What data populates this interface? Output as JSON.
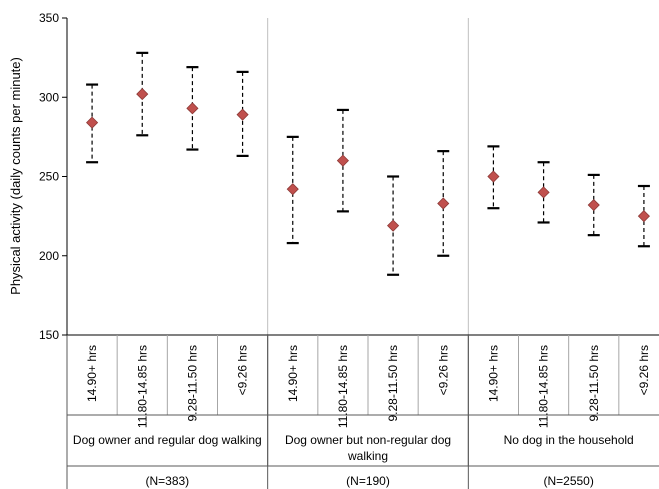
{
  "chart_data": {
    "type": "scatter",
    "subtype": "point estimates with error bars, grouped categories",
    "ylabel": "Physical activity (daily counts per minute)",
    "ylim": [
      150,
      350
    ],
    "yticks": [
      150,
      200,
      250,
      300,
      350
    ],
    "categories": [
      "14.90+ hrs",
      "11.80-14.85 hrs",
      "9.28-11.50 hrs",
      "<9.26 hrs"
    ],
    "marker_color": "#C0504D",
    "groups": [
      {
        "label": "Dog owner and regular dog walking",
        "n": "(N=383)",
        "points": [
          {
            "category": "14.90+ hrs",
            "y": 284,
            "lower": 259,
            "upper": 308
          },
          {
            "category": "11.80-14.85 hrs",
            "y": 302,
            "lower": 276,
            "upper": 328
          },
          {
            "category": "9.28-11.50 hrs",
            "y": 293,
            "lower": 267,
            "upper": 319
          },
          {
            "category": "<9.26 hrs",
            "y": 289,
            "lower": 263,
            "upper": 316
          }
        ]
      },
      {
        "label": "Dog owner but non-regular dog walking",
        "n": "(N=190)",
        "points": [
          {
            "category": "14.90+ hrs",
            "y": 242,
            "lower": 208,
            "upper": 275
          },
          {
            "category": "11.80-14.85 hrs",
            "y": 260,
            "lower": 228,
            "upper": 292
          },
          {
            "category": "9.28-11.50 hrs",
            "y": 219,
            "lower": 188,
            "upper": 250
          },
          {
            "category": "<9.26 hrs",
            "y": 233,
            "lower": 200,
            "upper": 266
          }
        ]
      },
      {
        "label": "No dog in the household",
        "n": "(N=2550)",
        "points": [
          {
            "category": "14.90+ hrs",
            "y": 250,
            "lower": 230,
            "upper": 269
          },
          {
            "category": "11.80-14.85 hrs",
            "y": 240,
            "lower": 221,
            "upper": 259
          },
          {
            "category": "9.28-11.50 hrs",
            "y": 232,
            "lower": 213,
            "upper": 251
          },
          {
            "category": "<9.26 hrs",
            "y": 225,
            "lower": 206,
            "upper": 244
          }
        ]
      }
    ]
  }
}
